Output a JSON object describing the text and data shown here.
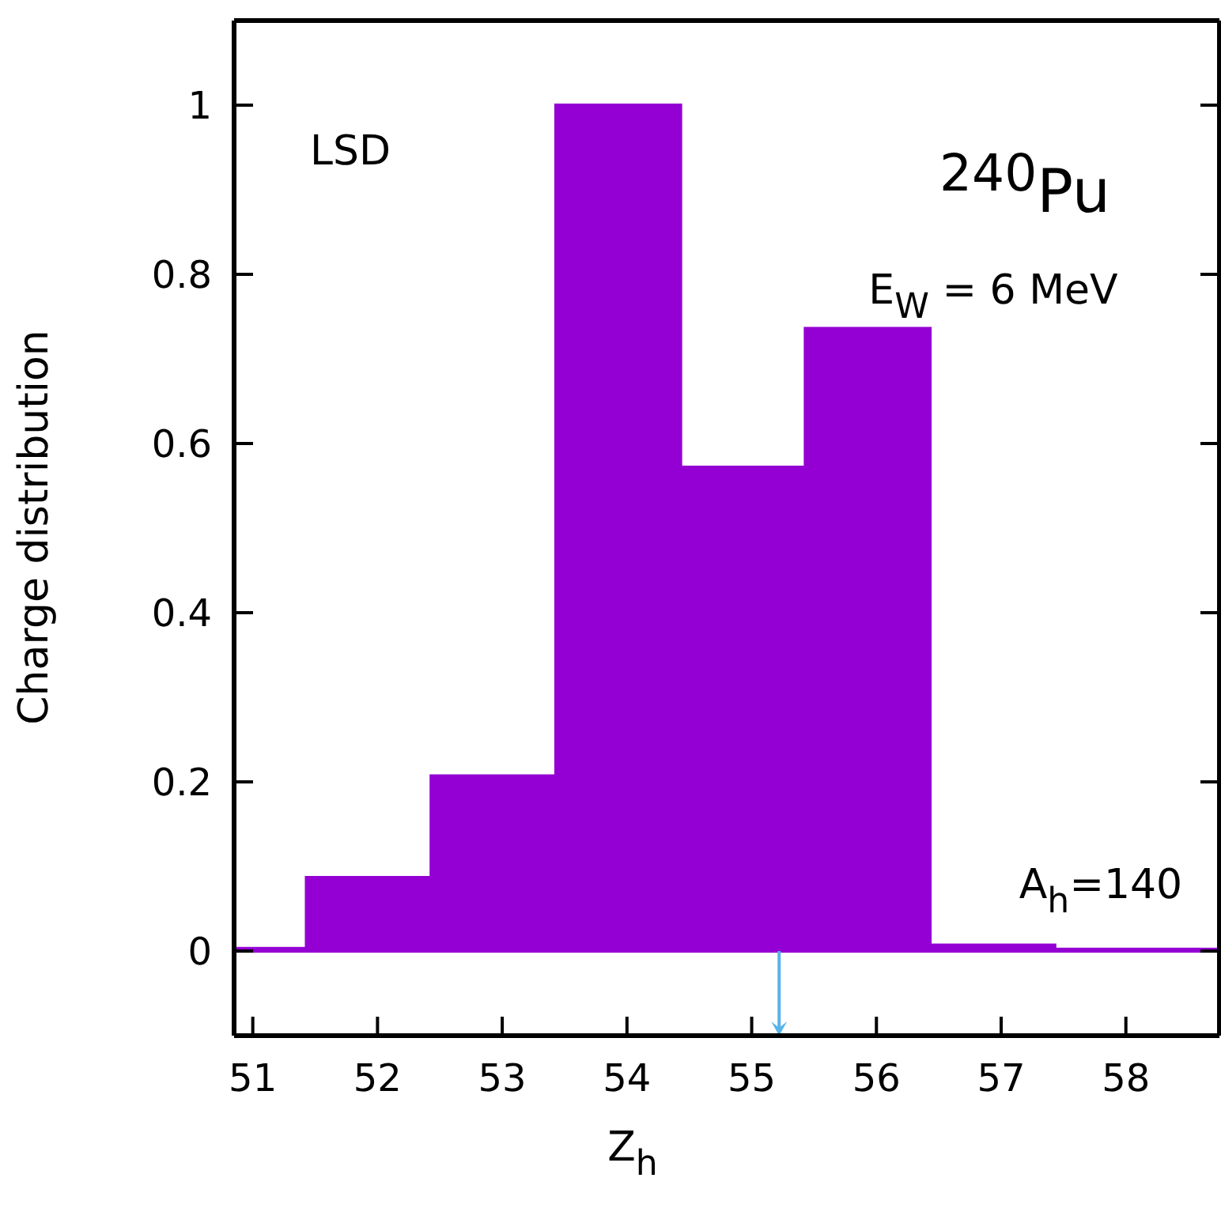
{
  "chart_data": {
    "type": "histogram",
    "bins": [
      50.85,
      51.43,
      52.43,
      53.43,
      54.43,
      55.43,
      56.43,
      57.43,
      58.75
    ],
    "values": [
      0.003,
      0.087,
      0.207,
      1.0,
      0.572,
      0.736,
      0.007,
      0.002
    ],
    "color": "#9400d3",
    "xlabel": "Z$_{h}$",
    "ylabel": "Charge distribution",
    "xlim": [
      50.85,
      58.75
    ],
    "xticks": [
      51,
      52,
      53,
      54,
      55,
      56,
      57,
      58
    ],
    "ylim": [
      -0.1,
      1.1
    ],
    "yticks": [
      0,
      0.2,
      0.4,
      0.6,
      0.8,
      1
    ],
    "ref_lines": [
      {
        "axis": "x",
        "value": 55.22,
        "color": "#56b4e9"
      }
    ],
    "annotations": [
      "LSD",
      "$^{240}$Pu",
      "E$_{W}$ = 6 MeV",
      "A$_{h}$=140"
    ]
  }
}
